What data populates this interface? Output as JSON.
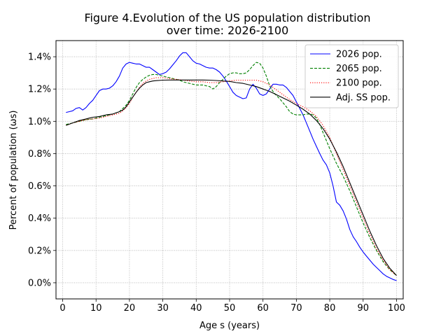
{
  "chart_data": {
    "type": "line",
    "title_lines": [
      "Figure 4.Evolution of the US population distribution",
      "over time: 2026-2100"
    ],
    "xlabel": "Age s (years)",
    "ylabel": "Percent of population (ωs)",
    "xlim": [
      -2,
      102
    ],
    "ylim": [
      -0.1,
      1.5
    ],
    "xticks": [
      0,
      10,
      20,
      30,
      40,
      50,
      60,
      70,
      80,
      90,
      100
    ],
    "yticks": [
      0.0,
      0.2,
      0.4,
      0.6,
      0.8,
      1.0,
      1.2,
      1.4
    ],
    "ytick_labels": [
      "0.0%",
      "0.2%",
      "0.4%",
      "0.6%",
      "0.8%",
      "1.0%",
      "1.2%",
      "1.4%"
    ],
    "grid": true,
    "legend_position": "top-right",
    "series": [
      {
        "name": "2026 pop.",
        "color": "#0000ff",
        "dash": "solid",
        "points": [
          [
            1,
            1.055
          ],
          [
            2,
            1.06
          ],
          [
            3,
            1.065
          ],
          [
            4,
            1.08
          ],
          [
            5,
            1.085
          ],
          [
            6,
            1.07
          ],
          [
            7,
            1.085
          ],
          [
            8,
            1.11
          ],
          [
            9,
            1.13
          ],
          [
            10,
            1.16
          ],
          [
            11,
            1.19
          ],
          [
            12,
            1.2
          ],
          [
            13,
            1.2
          ],
          [
            14,
            1.205
          ],
          [
            15,
            1.22
          ],
          [
            16,
            1.245
          ],
          [
            17,
            1.28
          ],
          [
            18,
            1.33
          ],
          [
            19,
            1.355
          ],
          [
            20,
            1.365
          ],
          [
            21,
            1.36
          ],
          [
            22,
            1.355
          ],
          [
            23,
            1.355
          ],
          [
            24,
            1.345
          ],
          [
            25,
            1.335
          ],
          [
            26,
            1.335
          ],
          [
            27,
            1.32
          ],
          [
            28,
            1.305
          ],
          [
            29,
            1.29
          ],
          [
            30,
            1.295
          ],
          [
            31,
            1.305
          ],
          [
            32,
            1.325
          ],
          [
            33,
            1.35
          ],
          [
            34,
            1.375
          ],
          [
            35,
            1.405
          ],
          [
            36,
            1.425
          ],
          [
            37,
            1.425
          ],
          [
            38,
            1.4
          ],
          [
            39,
            1.375
          ],
          [
            40,
            1.36
          ],
          [
            41,
            1.355
          ],
          [
            42,
            1.345
          ],
          [
            43,
            1.335
          ],
          [
            44,
            1.33
          ],
          [
            45,
            1.33
          ],
          [
            46,
            1.32
          ],
          [
            47,
            1.305
          ],
          [
            48,
            1.28
          ],
          [
            49,
            1.25
          ],
          [
            50,
            1.215
          ],
          [
            51,
            1.18
          ],
          [
            52,
            1.16
          ],
          [
            53,
            1.15
          ],
          [
            54,
            1.14
          ],
          [
            55,
            1.145
          ],
          [
            56,
            1.2
          ],
          [
            57,
            1.23
          ],
          [
            58,
            1.205
          ],
          [
            59,
            1.17
          ],
          [
            60,
            1.16
          ],
          [
            61,
            1.17
          ],
          [
            62,
            1.2
          ],
          [
            63,
            1.23
          ],
          [
            64,
            1.23
          ],
          [
            65,
            1.225
          ],
          [
            66,
            1.225
          ],
          [
            67,
            1.21
          ],
          [
            68,
            1.185
          ],
          [
            69,
            1.16
          ],
          [
            70,
            1.12
          ],
          [
            71,
            1.08
          ],
          [
            72,
            1.04
          ],
          [
            73,
            0.99
          ],
          [
            74,
            0.94
          ],
          [
            75,
            0.89
          ],
          [
            76,
            0.845
          ],
          [
            77,
            0.8
          ],
          [
            78,
            0.76
          ],
          [
            79,
            0.73
          ],
          [
            80,
            0.68
          ],
          [
            81,
            0.6
          ],
          [
            82,
            0.5
          ],
          [
            83,
            0.48
          ],
          [
            84,
            0.445
          ],
          [
            85,
            0.395
          ],
          [
            86,
            0.33
          ],
          [
            87,
            0.285
          ],
          [
            88,
            0.255
          ],
          [
            89,
            0.22
          ],
          [
            90,
            0.19
          ],
          [
            91,
            0.165
          ],
          [
            92,
            0.14
          ],
          [
            93,
            0.115
          ],
          [
            94,
            0.095
          ],
          [
            95,
            0.075
          ],
          [
            96,
            0.055
          ],
          [
            97,
            0.04
          ],
          [
            98,
            0.03
          ],
          [
            99,
            0.02
          ],
          [
            100,
            0.013
          ]
        ]
      },
      {
        "name": "2065 pop.",
        "color": "#008000",
        "dash": "dashed",
        "points": [
          [
            1,
            0.98
          ],
          [
            3,
            0.99
          ],
          [
            5,
            1.0
          ],
          [
            7,
            1.01
          ],
          [
            9,
            1.015
          ],
          [
            11,
            1.025
          ],
          [
            13,
            1.035
          ],
          [
            15,
            1.045
          ],
          [
            17,
            1.06
          ],
          [
            18,
            1.08
          ],
          [
            19,
            1.1
          ],
          [
            20,
            1.13
          ],
          [
            21,
            1.17
          ],
          [
            22,
            1.21
          ],
          [
            23,
            1.24
          ],
          [
            24,
            1.26
          ],
          [
            25,
            1.275
          ],
          [
            26,
            1.285
          ],
          [
            27,
            1.29
          ],
          [
            28,
            1.29
          ],
          [
            29,
            1.285
          ],
          [
            30,
            1.28
          ],
          [
            31,
            1.275
          ],
          [
            32,
            1.27
          ],
          [
            33,
            1.265
          ],
          [
            34,
            1.26
          ],
          [
            35,
            1.255
          ],
          [
            36,
            1.245
          ],
          [
            37,
            1.24
          ],
          [
            38,
            1.235
          ],
          [
            39,
            1.23
          ],
          [
            40,
            1.225
          ],
          [
            41,
            1.225
          ],
          [
            42,
            1.225
          ],
          [
            43,
            1.22
          ],
          [
            44,
            1.215
          ],
          [
            45,
            1.2
          ],
          [
            46,
            1.215
          ],
          [
            47,
            1.24
          ],
          [
            48,
            1.26
          ],
          [
            49,
            1.28
          ],
          [
            50,
            1.295
          ],
          [
            51,
            1.3
          ],
          [
            52,
            1.3
          ],
          [
            53,
            1.295
          ],
          [
            54,
            1.295
          ],
          [
            55,
            1.3
          ],
          [
            56,
            1.32
          ],
          [
            57,
            1.345
          ],
          [
            58,
            1.365
          ],
          [
            59,
            1.36
          ],
          [
            60,
            1.33
          ],
          [
            61,
            1.28
          ],
          [
            62,
            1.22
          ],
          [
            63,
            1.185
          ],
          [
            64,
            1.16
          ],
          [
            65,
            1.14
          ],
          [
            66,
            1.115
          ],
          [
            67,
            1.09
          ],
          [
            68,
            1.06
          ],
          [
            69,
            1.045
          ],
          [
            70,
            1.04
          ],
          [
            71,
            1.04
          ],
          [
            72,
            1.04
          ],
          [
            73,
            1.045
          ],
          [
            74,
            1.045
          ],
          [
            75,
            1.04
          ],
          [
            76,
            1.02
          ],
          [
            77,
            0.98
          ],
          [
            78,
            0.93
          ],
          [
            79,
            0.88
          ],
          [
            80,
            0.83
          ],
          [
            82,
            0.74
          ],
          [
            84,
            0.66
          ],
          [
            86,
            0.57
          ],
          [
            88,
            0.47
          ],
          [
            90,
            0.37
          ],
          [
            92,
            0.28
          ],
          [
            94,
            0.2
          ],
          [
            96,
            0.13
          ],
          [
            98,
            0.08
          ],
          [
            100,
            0.045
          ]
        ]
      },
      {
        "name": "2100 pop.",
        "color": "#ff0000",
        "dash": "dotted",
        "points": [
          [
            1,
            0.975
          ],
          [
            3,
            0.99
          ],
          [
            5,
            1.0
          ],
          [
            7,
            1.01
          ],
          [
            9,
            1.015
          ],
          [
            11,
            1.02
          ],
          [
            13,
            1.03
          ],
          [
            15,
            1.04
          ],
          [
            17,
            1.05
          ],
          [
            18,
            1.065
          ],
          [
            19,
            1.085
          ],
          [
            20,
            1.11
          ],
          [
            21,
            1.15
          ],
          [
            22,
            1.18
          ],
          [
            23,
            1.21
          ],
          [
            24,
            1.235
          ],
          [
            25,
            1.25
          ],
          [
            26,
            1.26
          ],
          [
            27,
            1.265
          ],
          [
            28,
            1.27
          ],
          [
            29,
            1.27
          ],
          [
            30,
            1.27
          ],
          [
            32,
            1.265
          ],
          [
            34,
            1.26
          ],
          [
            36,
            1.255
          ],
          [
            38,
            1.25
          ],
          [
            40,
            1.245
          ],
          [
            42,
            1.245
          ],
          [
            44,
            1.24
          ],
          [
            46,
            1.24
          ],
          [
            48,
            1.245
          ],
          [
            50,
            1.25
          ],
          [
            52,
            1.255
          ],
          [
            54,
            1.255
          ],
          [
            56,
            1.255
          ],
          [
            58,
            1.255
          ],
          [
            60,
            1.245
          ],
          [
            62,
            1.225
          ],
          [
            64,
            1.195
          ],
          [
            66,
            1.165
          ],
          [
            68,
            1.135
          ],
          [
            70,
            1.11
          ],
          [
            72,
            1.09
          ],
          [
            74,
            1.065
          ],
          [
            76,
            1.03
          ],
          [
            78,
            0.975
          ],
          [
            80,
            0.9
          ],
          [
            82,
            0.8
          ],
          [
            84,
            0.7
          ],
          [
            86,
            0.6
          ],
          [
            88,
            0.5
          ],
          [
            90,
            0.4
          ],
          [
            92,
            0.3
          ],
          [
            94,
            0.21
          ],
          [
            96,
            0.14
          ],
          [
            98,
            0.08
          ],
          [
            100,
            0.045
          ]
        ]
      },
      {
        "name": "Adj. SS pop.",
        "color": "#000000",
        "dash": "solid",
        "points": [
          [
            1,
            0.975
          ],
          [
            3,
            0.99
          ],
          [
            5,
            1.005
          ],
          [
            7,
            1.015
          ],
          [
            9,
            1.025
          ],
          [
            11,
            1.03
          ],
          [
            13,
            1.04
          ],
          [
            15,
            1.045
          ],
          [
            17,
            1.06
          ],
          [
            18,
            1.07
          ],
          [
            19,
            1.09
          ],
          [
            20,
            1.12
          ],
          [
            21,
            1.15
          ],
          [
            22,
            1.18
          ],
          [
            23,
            1.205
          ],
          [
            24,
            1.225
          ],
          [
            25,
            1.24
          ],
          [
            26,
            1.245
          ],
          [
            27,
            1.25
          ],
          [
            28,
            1.252
          ],
          [
            30,
            1.255
          ],
          [
            32,
            1.256
          ],
          [
            34,
            1.256
          ],
          [
            36,
            1.256
          ],
          [
            38,
            1.256
          ],
          [
            40,
            1.256
          ],
          [
            42,
            1.256
          ],
          [
            44,
            1.255
          ],
          [
            46,
            1.253
          ],
          [
            48,
            1.25
          ],
          [
            50,
            1.247
          ],
          [
            52,
            1.24
          ],
          [
            54,
            1.235
          ],
          [
            56,
            1.225
          ],
          [
            58,
            1.215
          ],
          [
            60,
            1.2
          ],
          [
            62,
            1.185
          ],
          [
            64,
            1.165
          ],
          [
            66,
            1.145
          ],
          [
            68,
            1.125
          ],
          [
            70,
            1.1
          ],
          [
            72,
            1.075
          ],
          [
            74,
            1.045
          ],
          [
            76,
            1.005
          ],
          [
            78,
            0.955
          ],
          [
            80,
            0.89
          ],
          [
            82,
            0.81
          ],
          [
            84,
            0.72
          ],
          [
            86,
            0.62
          ],
          [
            88,
            0.52
          ],
          [
            90,
            0.42
          ],
          [
            92,
            0.32
          ],
          [
            94,
            0.23
          ],
          [
            96,
            0.15
          ],
          [
            98,
            0.09
          ],
          [
            100,
            0.045
          ]
        ]
      }
    ]
  }
}
